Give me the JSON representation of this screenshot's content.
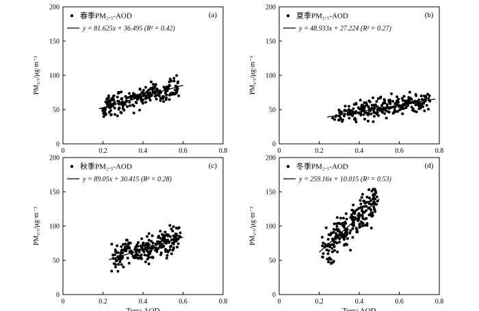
{
  "chart_data": [
    {
      "type": "scatter",
      "panel_label": "(a)",
      "legend_points": "春季PM₂.₅-AOD",
      "fit_label": "y = 81.625x + 36.495   (R² = 0.42)",
      "fit": {
        "slope": 81.625,
        "intercept": 36.495,
        "x_range": [
          0.18,
          0.6
        ]
      },
      "xlabel": "",
      "ylabel": "PM₂.₅/μg·m⁻³",
      "xlim": [
        0,
        0.8
      ],
      "ylim": [
        0,
        200
      ],
      "xticks": [
        "0",
        "0.2",
        "0.4",
        "0.6",
        "0.8"
      ],
      "yticks": [
        "0",
        "50",
        "100",
        "150",
        "200"
      ],
      "legend_position": "top-left",
      "cluster": {
        "x_range": [
          0.18,
          0.6
        ],
        "count": 230,
        "noise": 11
      }
    },
    {
      "type": "scatter",
      "panel_label": "(b)",
      "legend_points": "夏季PM₂.₅-AOD",
      "fit_label": "y = 48.933x + 27.224   (R² = 0.27)",
      "fit": {
        "slope": 48.933,
        "intercept": 27.224,
        "x_range": [
          0.24,
          0.78
        ]
      },
      "xlabel": "",
      "ylabel": "PM₂.₅/μg·m⁻³",
      "xlim": [
        0,
        0.8
      ],
      "ylim": [
        0,
        200
      ],
      "xticks": [
        "0",
        "0.2",
        "0.4",
        "0.6",
        "0.8"
      ],
      "yticks": [
        "0",
        "50",
        "100",
        "150",
        "200"
      ],
      "legend_position": "top-left",
      "cluster": {
        "x_range": [
          0.24,
          0.78
        ],
        "count": 260,
        "noise": 10
      }
    },
    {
      "type": "scatter",
      "panel_label": "(c)",
      "legend_points": "秋季PM₂.₅-AOD",
      "fit_label": "y = 89.05x + 30.415   (R² = 0.28)",
      "fit": {
        "slope": 89.05,
        "intercept": 30.415,
        "x_range": [
          0.23,
          0.6
        ]
      },
      "xlabel": "Terra AOD",
      "ylabel": "PM₂.₅/μg·m⁻³",
      "xlim": [
        0,
        0.8
      ],
      "ylim": [
        0,
        200
      ],
      "xticks": [
        "0",
        "0.2",
        "0.4",
        "0.6",
        "0.8"
      ],
      "yticks": [
        "0",
        "50",
        "100",
        "150",
        "200"
      ],
      "legend_position": "top-left",
      "cluster": {
        "x_range": [
          0.23,
          0.6
        ],
        "count": 230,
        "noise": 13
      }
    },
    {
      "type": "scatter",
      "panel_label": "(d)",
      "legend_points": "冬季PM₂.₅-AOD",
      "fit_label": "y = 259.16x + 10.015   (R² = 0.53)",
      "fit": {
        "slope": 259.16,
        "intercept": 10.015,
        "x_range": [
          0.2,
          0.5
        ]
      },
      "xlabel": "Terra AOD",
      "ylabel": "PM₂.₅/μg·m⁻³",
      "xlim": [
        0,
        0.8
      ],
      "ylim": [
        0,
        200
      ],
      "xticks": [
        "0",
        "0.2",
        "0.4",
        "0.6",
        "0.8"
      ],
      "yticks": [
        "0",
        "50",
        "100",
        "150",
        "200"
      ],
      "legend_position": "top-left",
      "cluster": {
        "x_range": [
          0.2,
          0.5
        ],
        "count": 230,
        "noise": 20
      }
    }
  ]
}
